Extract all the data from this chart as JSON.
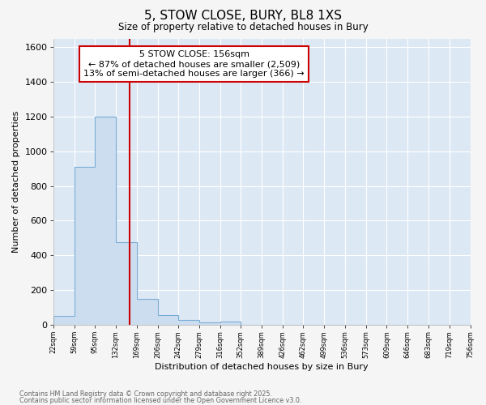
{
  "title_line1": "5, STOW CLOSE, BURY, BL8 1XS",
  "title_line2": "Size of property relative to detached houses in Bury",
  "xlabel": "Distribution of detached houses by size in Bury",
  "ylabel": "Number of detached properties",
  "bar_edges": [
    22,
    59,
    95,
    132,
    169,
    206,
    242,
    279,
    316,
    352,
    389,
    426,
    462,
    499,
    536,
    573,
    609,
    646,
    683,
    719,
    756
  ],
  "bar_heights": [
    50,
    910,
    1200,
    475,
    150,
    55,
    28,
    15,
    20,
    0,
    0,
    0,
    0,
    0,
    0,
    0,
    0,
    0,
    0,
    0
  ],
  "bar_fill_color": "#ccddf0",
  "bar_edge_color": "#7aadd4",
  "ylim": [
    0,
    1650
  ],
  "yticks": [
    0,
    200,
    400,
    600,
    800,
    1000,
    1200,
    1400,
    1600
  ],
  "property_size": 156,
  "vline_color": "#cc0000",
  "annotation_text": "5 STOW CLOSE: 156sqm\n← 87% of detached houses are smaller (2,509)\n13% of semi-detached houses are larger (366) →",
  "annotation_fontsize": 8,
  "annotation_box_color": "#cc0000",
  "fig_background": "#f5f5f5",
  "plot_background": "#dde8f5",
  "grid_color": "#ffffff",
  "footer_line1": "Contains HM Land Registry data © Crown copyright and database right 2025.",
  "footer_line2": "Contains public sector information licensed under the Open Government Licence v3.0.",
  "tick_labels": [
    "22sqm",
    "59sqm",
    "95sqm",
    "132sqm",
    "169sqm",
    "206sqm",
    "242sqm",
    "279sqm",
    "316sqm",
    "352sqm",
    "389sqm",
    "426sqm",
    "462sqm",
    "499sqm",
    "536sqm",
    "573sqm",
    "609sqm",
    "646sqm",
    "683sqm",
    "719sqm",
    "756sqm"
  ]
}
